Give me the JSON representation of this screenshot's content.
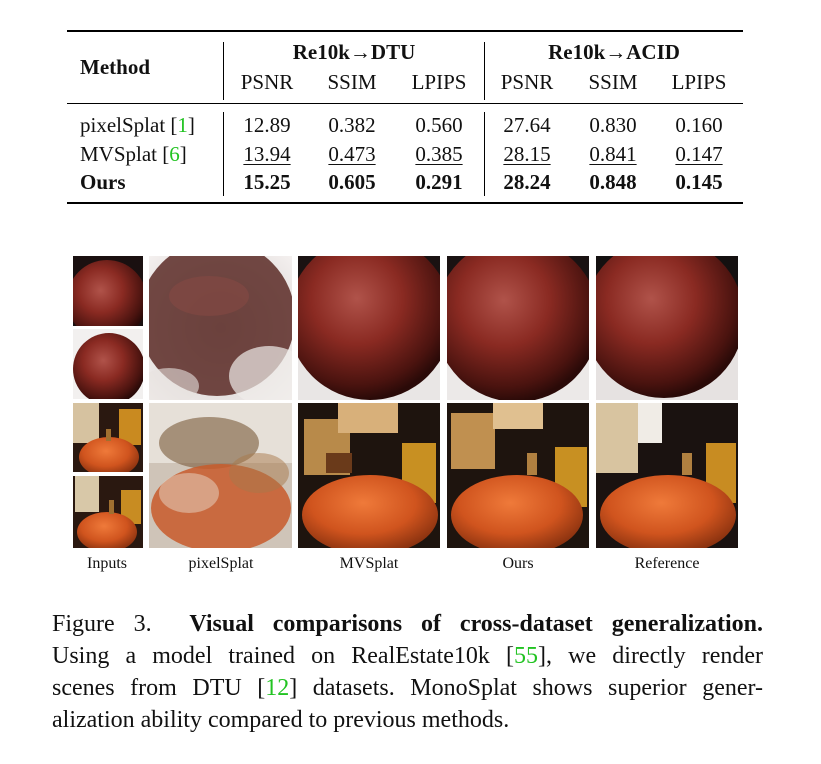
{
  "table": {
    "method_header": "Method",
    "group_headers": [
      "Re10k→DTU",
      "Re10k→ACID"
    ],
    "metric_headers": [
      "PSNR",
      "SSIM",
      "LPIPS",
      "PSNR",
      "SSIM",
      "LPIPS"
    ],
    "rows": [
      {
        "method": "pixelSplat",
        "ref": "1",
        "values": [
          "12.89",
          "0.382",
          "0.560",
          "27.64",
          "0.830",
          "0.160"
        ],
        "style": "normal"
      },
      {
        "method": "MVSplat",
        "ref": "6",
        "values": [
          "13.94",
          "0.473",
          "0.385",
          "28.15",
          "0.841",
          "0.147"
        ],
        "style": "underline"
      },
      {
        "method": "Ours",
        "ref": "",
        "values": [
          "15.25",
          "0.605",
          "0.291",
          "28.24",
          "0.848",
          "0.145"
        ],
        "style": "bold"
      }
    ]
  },
  "figure": {
    "column_labels": [
      "Inputs",
      "pixelSplat",
      "MVSplat",
      "Ours",
      "Reference"
    ],
    "caption": {
      "prefix": "Figure 3.",
      "title": "Visual comparisons of cross-dataset generalization.",
      "body_1": "Using a model trained on RealEstate10k [",
      "ref_1": "55",
      "body_2": "], we directly render",
      "body_3": "scenes from DTU [",
      "ref_2": "12",
      "body_4": "] datasets. MonoSplat shows superior gener-",
      "body_5": "alization ability compared to previous methods."
    },
    "colors": {
      "citation": "#22c322",
      "ball_red": "#8a2a22",
      "pumpkin_orange": "#d0541e"
    }
  }
}
